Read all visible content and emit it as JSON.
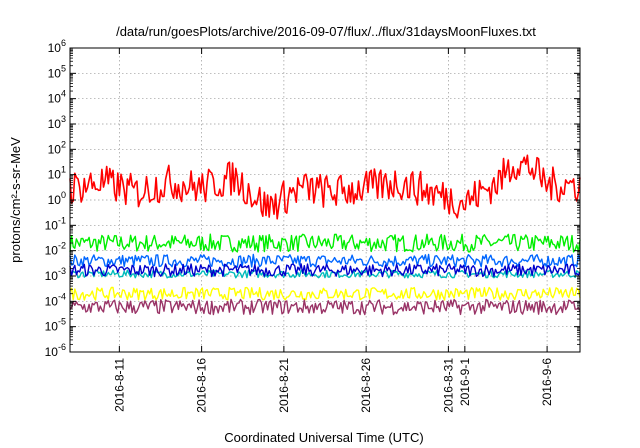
{
  "chart_data": {
    "type": "line",
    "title": "/data/run/goesPlots/archive/2016-09-07/flux/../flux/31daysMoonFluxes.txt",
    "xlabel": "Coordinated Universal Time (UTC)",
    "ylabel": "protons/cm²-s-sr-MeV",
    "y_scale": "log",
    "ylim": [
      1e-06,
      1000000.0
    ],
    "y_ticks": [
      {
        "value": 1e-06,
        "base": "10",
        "exp": "-6"
      },
      {
        "value": 1e-05,
        "base": "10",
        "exp": "-5"
      },
      {
        "value": 0.0001,
        "base": "10",
        "exp": "-4"
      },
      {
        "value": 0.001,
        "base": "10",
        "exp": "-3"
      },
      {
        "value": 0.01,
        "base": "10",
        "exp": "-2"
      },
      {
        "value": 0.1,
        "base": "10",
        "exp": "-1"
      },
      {
        "value": 1,
        "base": "10",
        "exp": "0"
      },
      {
        "value": 10,
        "base": "10",
        "exp": "1"
      },
      {
        "value": 100,
        "base": "10",
        "exp": "2"
      },
      {
        "value": 1000,
        "base": "10",
        "exp": "3"
      },
      {
        "value": 10000,
        "base": "10",
        "exp": "4"
      },
      {
        "value": 100000,
        "base": "10",
        "exp": "5"
      },
      {
        "value": 1000000,
        "base": "10",
        "exp": "6"
      }
    ],
    "xlim": [
      "2016-08-08",
      "2016-09-08"
    ],
    "x_ticks": [
      {
        "date": "2016-08-11",
        "label": "2016-8-11"
      },
      {
        "date": "2016-08-16",
        "label": "2016-8-16"
      },
      {
        "date": "2016-08-21",
        "label": "2016-8-21"
      },
      {
        "date": "2016-08-26",
        "label": "2016-8-26"
      },
      {
        "date": "2016-08-31",
        "label": "2016-8-31"
      },
      {
        "date": "2016-09-01",
        "label": "2016-9-1"
      },
      {
        "date": "2016-09-06",
        "label": "2016-9-6"
      }
    ],
    "grid": true,
    "series": [
      {
        "color": "#ff0000",
        "x": [
          "2016-08-08",
          "2016-08-10",
          "2016-08-12",
          "2016-08-14",
          "2016-08-16",
          "2016-08-18",
          "2016-08-20",
          "2016-08-22",
          "2016-08-24",
          "2016-08-26",
          "2016-08-28",
          "2016-08-30",
          "2016-09-01",
          "2016-09-03",
          "2016-09-04",
          "2016-09-05",
          "2016-09-06",
          "2016-09-08"
        ],
        "y": [
          3,
          5,
          2,
          5,
          3,
          8,
          0.5,
          3,
          2,
          3,
          5,
          2,
          0.8,
          5,
          30,
          20,
          4,
          4
        ]
      },
      {
        "color": "#00ee00",
        "x": [
          "2016-08-08",
          "2016-08-18",
          "2016-08-28",
          "2016-09-08"
        ],
        "y": [
          0.02,
          0.02,
          0.02,
          0.02
        ]
      },
      {
        "color": "#0066ff",
        "x": [
          "2016-08-08",
          "2016-08-18",
          "2016-08-28",
          "2016-09-08"
        ],
        "y": [
          0.004,
          0.004,
          0.004,
          0.004
        ]
      },
      {
        "color": "#0000cc",
        "x": [
          "2016-08-08",
          "2016-08-18",
          "2016-08-28",
          "2016-09-08"
        ],
        "y": [
          0.0017,
          0.0017,
          0.0017,
          0.0017
        ]
      },
      {
        "color": "#00bbbb",
        "x": [
          "2016-08-08",
          "2016-08-18",
          "2016-08-28",
          "2016-09-08"
        ],
        "y": [
          0.0012,
          0.0012,
          0.0012,
          0.0012
        ]
      },
      {
        "color": "#ffff00",
        "x": [
          "2016-08-08",
          "2016-08-18",
          "2016-08-28",
          "2016-09-08"
        ],
        "y": [
          0.0002,
          0.0002,
          0.0002,
          0.0002
        ]
      },
      {
        "color": "#993366",
        "x": [
          "2016-08-08",
          "2016-08-18",
          "2016-08-28",
          "2016-09-08"
        ],
        "y": [
          6e-05,
          6e-05,
          6e-05,
          6e-05
        ]
      }
    ]
  }
}
